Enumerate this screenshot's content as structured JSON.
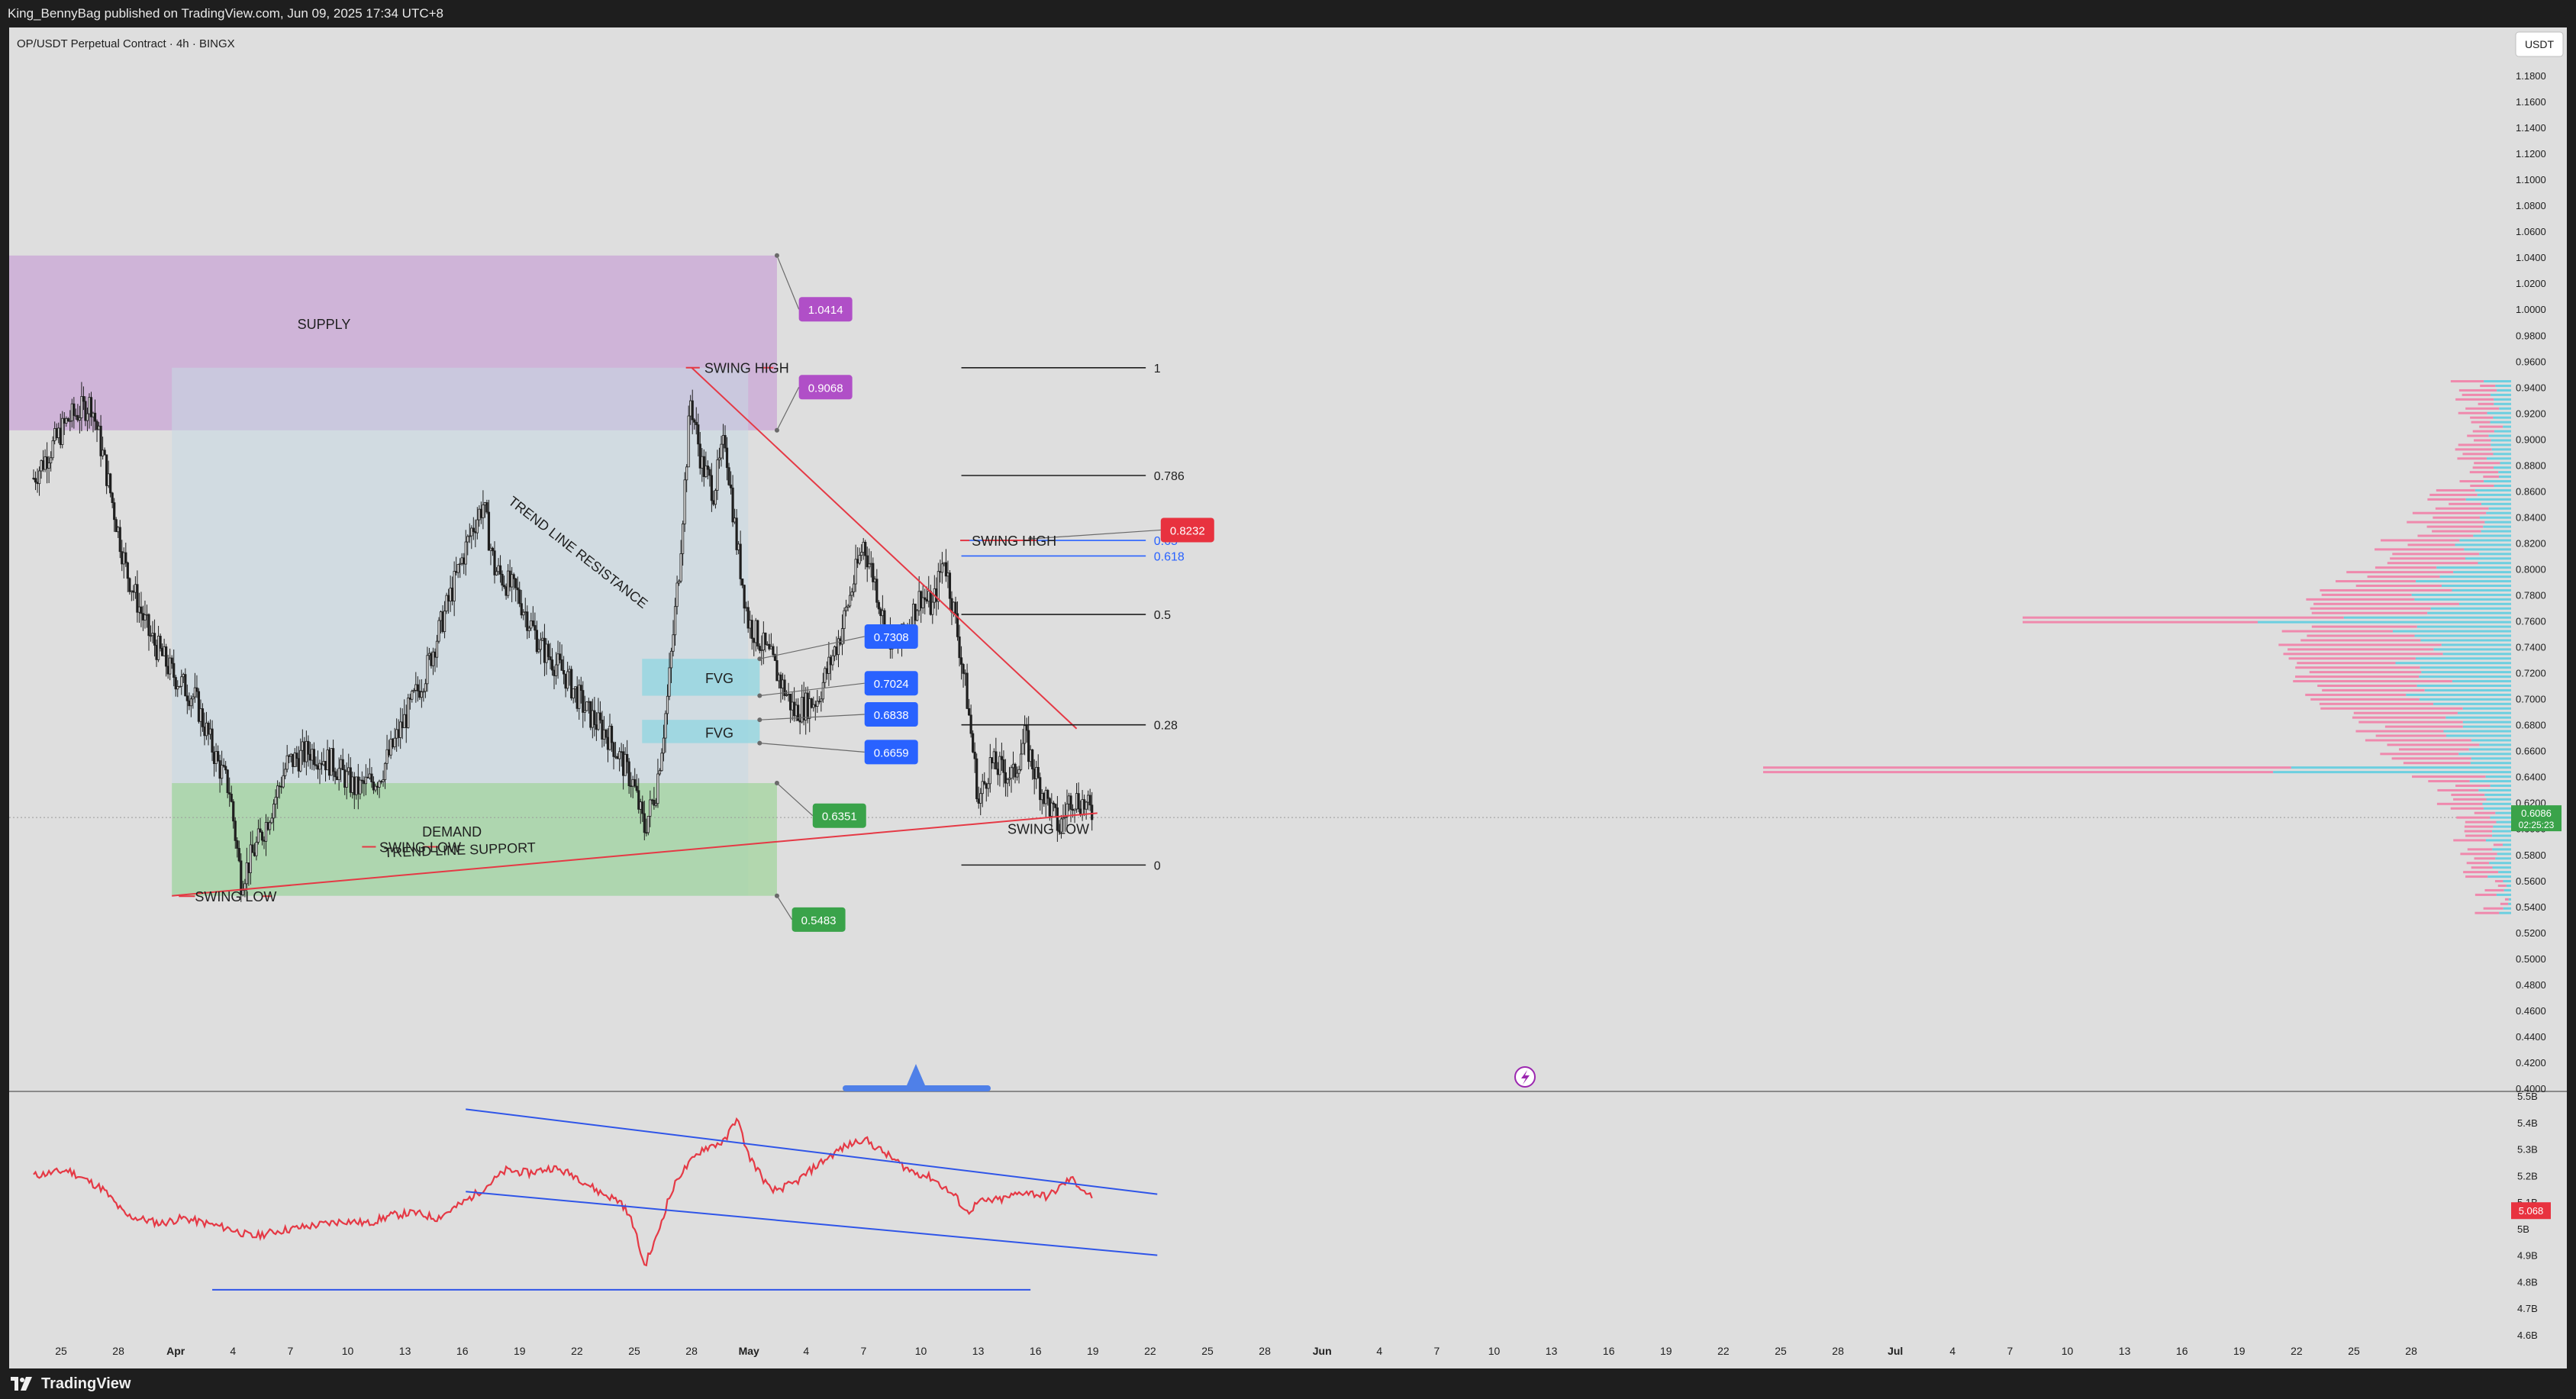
{
  "header": {
    "published_text": "King_BennyBag published on TradingView.com, Jun 09, 2025 17:34 UTC+8"
  },
  "footer": {
    "brand": "TradingView"
  },
  "chart_title": "OP/USDT Perpetual Contract · 4h · BINGX",
  "currency_button": "USDT",
  "colors": {
    "background": "#dedede",
    "candle": "#1f1f1f",
    "supply_zone": "#c9a5d6",
    "demand_zone": "#9fd49a",
    "range_box": "#c7d8e3",
    "fvg": "#8fd6e0",
    "trendline": "#e53945",
    "rsi_line": "#e53945",
    "rsi_channel": "#2f55e8",
    "label_blue": "#2962ff",
    "label_red": "#e8323f",
    "label_green": "#3aa34a",
    "label_purple": "#b04fc7",
    "volume_profile_up": "#6ccfe0",
    "volume_profile_down": "#ef89ad"
  },
  "chart_data": [
    {
      "type": "candlestick",
      "symbol": "OP/USDT Perpetual Contract",
      "timeframe": "4h",
      "exchange": "BINGX",
      "y_axis_ticks": [
        "1.1800",
        "1.1600",
        "1.1400",
        "1.1200",
        "1.1000",
        "1.0800",
        "1.0600",
        "1.0400",
        "1.0200",
        "1.0000",
        "0.9800",
        "0.9600",
        "0.9400",
        "0.9200",
        "0.9000",
        "0.8800",
        "0.8600",
        "0.8400",
        "0.8200",
        "0.8000",
        "0.7800",
        "0.7600",
        "0.7400",
        "0.7200",
        "0.7000",
        "0.6800",
        "0.6600",
        "0.6400",
        "0.6200",
        "0.6000",
        "0.5800",
        "0.5600",
        "0.5400",
        "0.5200",
        "0.5000",
        "0.4800",
        "0.4600",
        "0.4400",
        "0.4200",
        "0.4000"
      ],
      "x_axis_ticks": [
        "25",
        "28",
        "Apr",
        "4",
        "7",
        "10",
        "13",
        "16",
        "19",
        "22",
        "25",
        "28",
        "May",
        "4",
        "7",
        "10",
        "13",
        "16",
        "19",
        "22",
        "25",
        "28",
        "Jun",
        "4",
        "7",
        "10",
        "13",
        "16",
        "19",
        "22",
        "25",
        "28",
        "Jul",
        "4",
        "7",
        "10",
        "13",
        "16",
        "19",
        "22",
        "25",
        "28"
      ],
      "ylim": [
        0.4,
        1.19
      ],
      "price_path_close": [
        [
          0,
          0.87
        ],
        [
          3,
          0.915
        ],
        [
          5,
          0.928
        ],
        [
          6,
          0.888
        ],
        [
          8,
          0.8
        ],
        [
          10,
          0.75
        ],
        [
          12,
          0.72
        ],
        [
          14,
          0.7
        ],
        [
          16,
          0.65
        ],
        [
          17,
          0.63
        ],
        [
          18,
          0.56
        ],
        [
          19,
          0.58
        ],
        [
          20,
          0.6
        ],
        [
          22,
          0.65
        ],
        [
          24,
          0.66
        ],
        [
          26,
          0.65
        ],
        [
          28,
          0.63
        ],
        [
          30,
          0.64
        ],
        [
          32,
          0.68
        ],
        [
          34,
          0.72
        ],
        [
          36,
          0.775
        ],
        [
          38,
          0.83
        ],
        [
          39,
          0.85
        ],
        [
          40,
          0.8
        ],
        [
          42,
          0.78
        ],
        [
          44,
          0.74
        ],
        [
          46,
          0.72
        ],
        [
          48,
          0.69
        ],
        [
          50,
          0.67
        ],
        [
          52,
          0.635
        ],
        [
          53,
          0.6
        ],
        [
          54,
          0.63
        ],
        [
          55,
          0.7
        ],
        [
          56,
          0.8
        ],
        [
          57,
          0.93
        ],
        [
          58,
          0.88
        ],
        [
          59,
          0.86
        ],
        [
          60,
          0.9
        ],
        [
          61,
          0.82
        ],
        [
          62,
          0.76
        ],
        [
          64,
          0.73
        ],
        [
          66,
          0.69
        ],
        [
          68,
          0.7
        ],
        [
          70,
          0.75
        ],
        [
          72,
          0.82
        ],
        [
          73,
          0.79
        ],
        [
          74,
          0.75
        ],
        [
          75,
          0.74
        ],
        [
          76,
          0.76
        ],
        [
          77,
          0.78
        ],
        [
          78,
          0.77
        ],
        [
          79,
          0.81
        ],
        [
          80,
          0.76
        ],
        [
          81,
          0.7
        ],
        [
          82,
          0.62
        ],
        [
          83,
          0.65
        ],
        [
          85,
          0.64
        ],
        [
          86,
          0.67
        ],
        [
          87,
          0.64
        ],
        [
          88,
          0.62
        ],
        [
          89,
          0.6
        ],
        [
          90,
          0.625
        ],
        [
          91,
          0.62
        ],
        [
          92,
          0.61
        ]
      ],
      "x_domain_days": [
        0,
        147
      ],
      "price_path_day_offset": 0,
      "levels": [
        {
          "label": "1.0414",
          "value": 1.0414,
          "color": "#b04fc7"
        },
        {
          "label": "0.9068",
          "value": 0.9068,
          "color": "#b04fc7"
        },
        {
          "label": "0.8232",
          "value": 0.8232,
          "color": "#e8323f"
        },
        {
          "label": "0.7308",
          "value": 0.7308,
          "color": "#2962ff"
        },
        {
          "label": "0.7024",
          "value": 0.7024,
          "color": "#2962ff"
        },
        {
          "label": "0.6838",
          "value": 0.6838,
          "color": "#2962ff"
        },
        {
          "label": "0.6659",
          "value": 0.6659,
          "color": "#2962ff"
        },
        {
          "label": "0.6351",
          "value": 0.6351,
          "color": "#3aa34a"
        },
        {
          "label": "0.5483",
          "value": 0.5483,
          "color": "#3aa34a"
        }
      ],
      "current_price": {
        "value": "0.6086",
        "countdown": "02:25:23"
      },
      "fib_levels": [
        {
          "ratio": "1",
          "value": 0.955,
          "color": "#1f1f1f"
        },
        {
          "ratio": "0.786",
          "value": 0.872,
          "color": "#1f1f1f"
        },
        {
          "ratio": "0.65",
          "value": 0.822,
          "color": "#2962ff"
        },
        {
          "ratio": "0.618",
          "value": 0.81,
          "color": "#2962ff"
        },
        {
          "ratio": "0.5",
          "value": 0.765,
          "color": "#1f1f1f"
        },
        {
          "ratio": "0.28",
          "value": 0.68,
          "color": "#1f1f1f"
        },
        {
          "ratio": "0",
          "value": 0.572,
          "color": "#1f1f1f"
        }
      ],
      "annotations": [
        {
          "text": "SUPPLY"
        },
        {
          "text": "DEMAND"
        },
        {
          "text": "SWING HIGH"
        },
        {
          "text": "SWING HIGH"
        },
        {
          "text": "SWING LOW"
        },
        {
          "text": "SWING LOW"
        },
        {
          "text": "SWING LOW"
        },
        {
          "text": "TREND LINE SUPPORT"
        },
        {
          "text": "TREND LINE RESISTANCE"
        },
        {
          "text": "FVG"
        },
        {
          "text": "FVG"
        }
      ]
    },
    {
      "type": "line",
      "name": "",
      "y_axis_ticks": [
        "5.5B",
        "5.4B",
        "5.3B",
        "5.2B",
        "5.1B",
        "5B",
        "4.9B",
        "4.8B",
        "4.7B",
        "4.6B"
      ],
      "last_value": "5.068",
      "ylim": [
        4.6,
        5.5
      ],
      "series": [
        [
          0,
          5.2
        ],
        [
          3,
          5.22
        ],
        [
          6,
          5.15
        ],
        [
          8,
          5.05
        ],
        [
          11,
          5.02
        ],
        [
          13,
          5.04
        ],
        [
          15,
          5.02
        ],
        [
          17,
          5.0
        ],
        [
          19,
          4.97
        ],
        [
          21,
          4.99
        ],
        [
          24,
          5.01
        ],
        [
          27,
          5.03
        ],
        [
          29,
          5.02
        ],
        [
          31,
          5.05
        ],
        [
          33,
          5.06
        ],
        [
          35,
          5.04
        ],
        [
          37,
          5.09
        ],
        [
          39,
          5.15
        ],
        [
          41,
          5.22
        ],
        [
          43,
          5.21
        ],
        [
          45,
          5.23
        ],
        [
          47,
          5.2
        ],
        [
          49,
          5.14
        ],
        [
          51,
          5.1
        ],
        [
          52,
          5.02
        ],
        [
          53,
          4.86
        ],
        [
          54,
          4.96
        ],
        [
          55,
          5.1
        ],
        [
          56,
          5.2
        ],
        [
          58,
          5.3
        ],
        [
          60,
          5.33
        ],
        [
          61,
          5.42
        ],
        [
          62,
          5.28
        ],
        [
          64,
          5.14
        ],
        [
          66,
          5.17
        ],
        [
          68,
          5.24
        ],
        [
          70,
          5.3
        ],
        [
          72,
          5.34
        ],
        [
          74,
          5.28
        ],
        [
          76,
          5.22
        ],
        [
          78,
          5.19
        ],
        [
          80,
          5.12
        ],
        [
          81,
          5.06
        ],
        [
          82,
          5.1
        ],
        [
          84,
          5.11
        ],
        [
          86,
          5.14
        ],
        [
          88,
          5.12
        ],
        [
          90,
          5.19
        ],
        [
          92,
          5.11
        ]
      ]
    }
  ]
}
